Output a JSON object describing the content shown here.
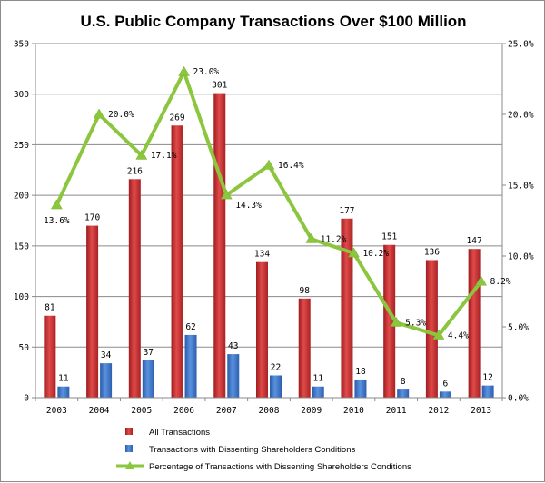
{
  "chart_data": {
    "type": "bar",
    "title": "U.S. Public Company Transactions Over $100 Million",
    "xlabel": "",
    "ylabel": "",
    "categories": [
      "2003",
      "2004",
      "2005",
      "2006",
      "2007",
      "2008",
      "2009",
      "2010",
      "2011",
      "2012",
      "2013"
    ],
    "series": [
      {
        "name": "All Transactions",
        "type": "bar",
        "axis": "left",
        "color": "#c0282a",
        "values": [
          81,
          170,
          216,
          269,
          301,
          134,
          98,
          177,
          151,
          136,
          147
        ],
        "labels": [
          "81",
          "170",
          "216",
          "269",
          "301",
          "134",
          "98",
          "177",
          "151",
          "136",
          "147"
        ]
      },
      {
        "name": "Transactions with Dissenting Shareholders Conditions",
        "type": "bar",
        "axis": "left",
        "color": "#3a6fc4",
        "values": [
          11,
          34,
          37,
          62,
          43,
          22,
          11,
          18,
          8,
          6,
          12
        ],
        "labels": [
          "11",
          "34",
          "37",
          "62",
          "43",
          "22",
          "11",
          "18",
          "8",
          "6",
          "12"
        ]
      },
      {
        "name": "Percentage of Transactions with Dissenting Shareholders Conditions",
        "type": "line",
        "axis": "right",
        "color": "#8cc63f",
        "values": [
          13.6,
          20.0,
          17.1,
          23.0,
          14.3,
          16.4,
          11.2,
          10.2,
          5.3,
          4.4,
          8.2
        ],
        "labels": [
          "13.6%",
          "20.0%",
          "17.1%",
          "23.0%",
          "14.3%",
          "16.4%",
          "11.2%",
          "10.2%",
          "5.3%",
          "4.4%",
          "8.2%"
        ]
      }
    ],
    "y_left": {
      "ylim": [
        0,
        350
      ],
      "ticks": [
        0,
        50,
        100,
        150,
        200,
        250,
        300,
        350
      ],
      "tick_labels": [
        "0",
        "50",
        "100",
        "150",
        "200",
        "250",
        "300",
        "350"
      ]
    },
    "y_right": {
      "ylim": [
        0,
        25
      ],
      "ticks": [
        0,
        5,
        10,
        15,
        20,
        25
      ],
      "tick_labels": [
        "0.0%",
        "5.0%",
        "10.0%",
        "15.0%",
        "20.0%",
        "25.0%"
      ]
    },
    "grid": true,
    "legend_position": "bottom"
  }
}
